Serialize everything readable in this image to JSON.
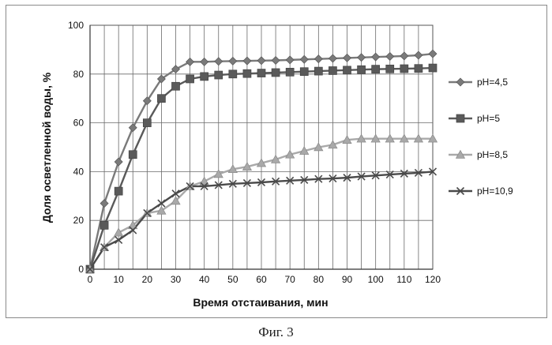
{
  "chart_data": {
    "type": "line",
    "xlabel": "Время отстаивания, мин",
    "ylabel": "Доля осветленной воды, %",
    "xlim": [
      0,
      120
    ],
    "ylim": [
      0,
      100
    ],
    "x_ticks": [
      0,
      10,
      20,
      30,
      40,
      50,
      60,
      70,
      80,
      90,
      100,
      110,
      120
    ],
    "y_ticks": [
      0,
      20,
      40,
      60,
      80,
      100
    ],
    "grid": "vertical lines every 5 min, horizontal every 20 %",
    "legend_position": "right",
    "x": [
      0,
      5,
      10,
      15,
      20,
      25,
      30,
      35,
      40,
      45,
      50,
      55,
      60,
      65,
      70,
      75,
      80,
      85,
      90,
      95,
      100,
      105,
      110,
      115,
      120
    ],
    "series": [
      {
        "name": "pH=4,5",
        "marker": "diamond",
        "color": "#7a7a7a",
        "values": [
          0,
          27,
          44,
          58,
          69,
          78,
          82,
          85,
          85,
          85.2,
          85.3,
          85.4,
          85.5,
          85.6,
          85.8,
          86,
          86.2,
          86.4,
          86.6,
          86.8,
          87,
          87.2,
          87.4,
          87.7,
          88.3
        ]
      },
      {
        "name": "pH=5",
        "marker": "square",
        "color": "#5a5a5a",
        "values": [
          0,
          18,
          32,
          47,
          60,
          70,
          75,
          78,
          79,
          79.6,
          80,
          80.2,
          80.4,
          80.6,
          80.8,
          81,
          81.2,
          81.4,
          81.6,
          81.8,
          82,
          82.1,
          82.2,
          82.3,
          82.5
        ]
      },
      {
        "name": "pH=8,5",
        "marker": "triangle",
        "color": "#a9a9a9",
        "values": [
          0,
          9,
          15,
          18,
          23,
          24,
          28,
          34,
          36,
          39,
          41,
          42,
          43.5,
          45,
          47,
          48.5,
          50,
          51,
          53,
          53.5,
          53.5,
          53.5,
          53.5,
          53.5,
          53.5
        ]
      },
      {
        "name": "pH=10,9",
        "marker": "x",
        "color": "#4a4a4a",
        "values": [
          0,
          9,
          12,
          16,
          23,
          27,
          31,
          34,
          34,
          34.5,
          35,
          35.3,
          35.6,
          36,
          36.3,
          36.6,
          37,
          37.2,
          37.5,
          38,
          38.4,
          38.8,
          39.2,
          39.5,
          40
        ]
      }
    ]
  },
  "caption": "Фиг. 3"
}
